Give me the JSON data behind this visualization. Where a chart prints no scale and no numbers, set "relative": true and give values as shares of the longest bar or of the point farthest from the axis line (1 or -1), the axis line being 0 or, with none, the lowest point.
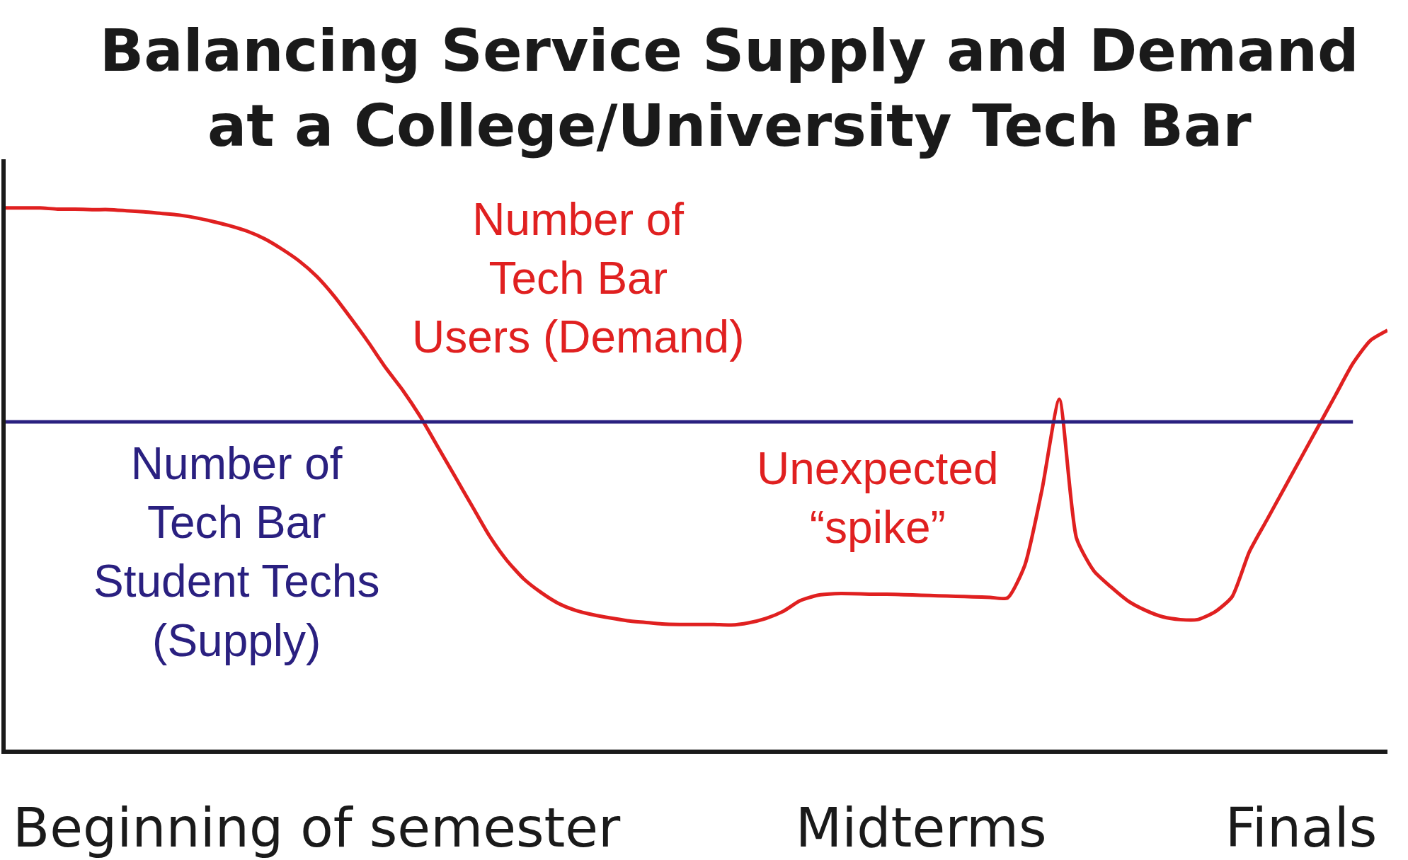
{
  "chart_data": {
    "type": "line",
    "title": "Balancing Service Supply and Demand\nat a College/University Tech Bar",
    "relative": true,
    "grid": false,
    "legend": false,
    "marker": "none",
    "line_style": "solid",
    "tick_labels": "x",
    "categories": [
      null,
      null,
      null,
      null,
      null,
      null,
      null,
      null,
      null,
      null,
      null,
      null,
      null,
      null,
      null,
      null,
      null,
      null,
      "Beginning of semester",
      null,
      null,
      null,
      null,
      null,
      null,
      null,
      null,
      null,
      null,
      null,
      null,
      null,
      null,
      null,
      null,
      null,
      null,
      null,
      null,
      null,
      null,
      null,
      null,
      null,
      null,
      null,
      null,
      null,
      null,
      null,
      null,
      null,
      null,
      "Midterms",
      null,
      null,
      null,
      null,
      null,
      null,
      null,
      null,
      null,
      null,
      null,
      null,
      null,
      null,
      null,
      null,
      null,
      null,
      null,
      null,
      null,
      "Finals",
      null,
      null,
      null,
      null,
      null
    ],
    "series": [
      {
        "name": "Number of\nTech Bar\nUsers (Demand)",
        "color": "#e02020",
        "values": [
          1.0,
          1.0,
          1.0,
          0.998,
          0.998,
          0.997,
          0.997,
          0.995,
          0.993,
          0.99,
          0.987,
          0.982,
          0.975,
          0.967,
          0.957,
          0.943,
          0.924,
          0.902,
          0.874,
          0.838,
          0.796,
          0.752,
          0.705,
          0.663,
          0.615,
          0.56,
          0.505,
          0.45,
          0.395,
          0.35,
          0.315,
          0.29,
          0.27,
          0.257,
          0.249,
          0.243,
          0.238,
          0.235,
          0.232,
          0.231,
          0.231,
          0.231,
          0.23,
          0.234,
          0.242,
          0.255,
          0.275,
          0.285,
          0.288,
          0.288,
          0.287,
          0.287,
          0.286,
          0.285,
          0.284,
          0.283,
          0.282,
          0.281,
          0.28,
          0.34,
          0.48,
          0.647,
          0.39,
          0.33,
          0.3,
          0.274,
          0.257,
          0.245,
          0.24,
          0.24,
          0.254,
          0.282,
          0.365,
          0.423,
          0.481,
          0.539,
          0.597,
          0.655,
          0.713,
          0.755,
          0.774
        ]
      },
      {
        "name": "Number of\nTech Bar\nStudent Techs\n(Supply)",
        "color": "#2a2080",
        "values": [
          0.605,
          0.605,
          0.605,
          0.605,
          0.605,
          0.605,
          0.605,
          0.605,
          0.605,
          0.605,
          0.605,
          0.605,
          0.605,
          0.605,
          0.605,
          0.605,
          0.605,
          0.605,
          0.605,
          0.605,
          0.605,
          0.605,
          0.605,
          0.605,
          0.605,
          0.605,
          0.605,
          0.605,
          0.605,
          0.605,
          0.605,
          0.605,
          0.605,
          0.605,
          0.605,
          0.605,
          0.605,
          0.605,
          0.605,
          0.605,
          0.605,
          0.605,
          0.605,
          0.605,
          0.605,
          0.605,
          0.605,
          0.605,
          0.605,
          0.605,
          0.605,
          0.605,
          0.605,
          0.605,
          0.605,
          0.605,
          0.605,
          0.605,
          0.605,
          0.605,
          0.605,
          0.605,
          0.605,
          0.605,
          0.605,
          0.605,
          0.605,
          0.605,
          0.605,
          0.605,
          0.605,
          0.605,
          0.605,
          0.605,
          0.605,
          0.605,
          0.605,
          0.605,
          0.605,
          null,
          null
        ]
      }
    ],
    "annotations": [
      "Unexpected\n“spike”"
    ]
  }
}
